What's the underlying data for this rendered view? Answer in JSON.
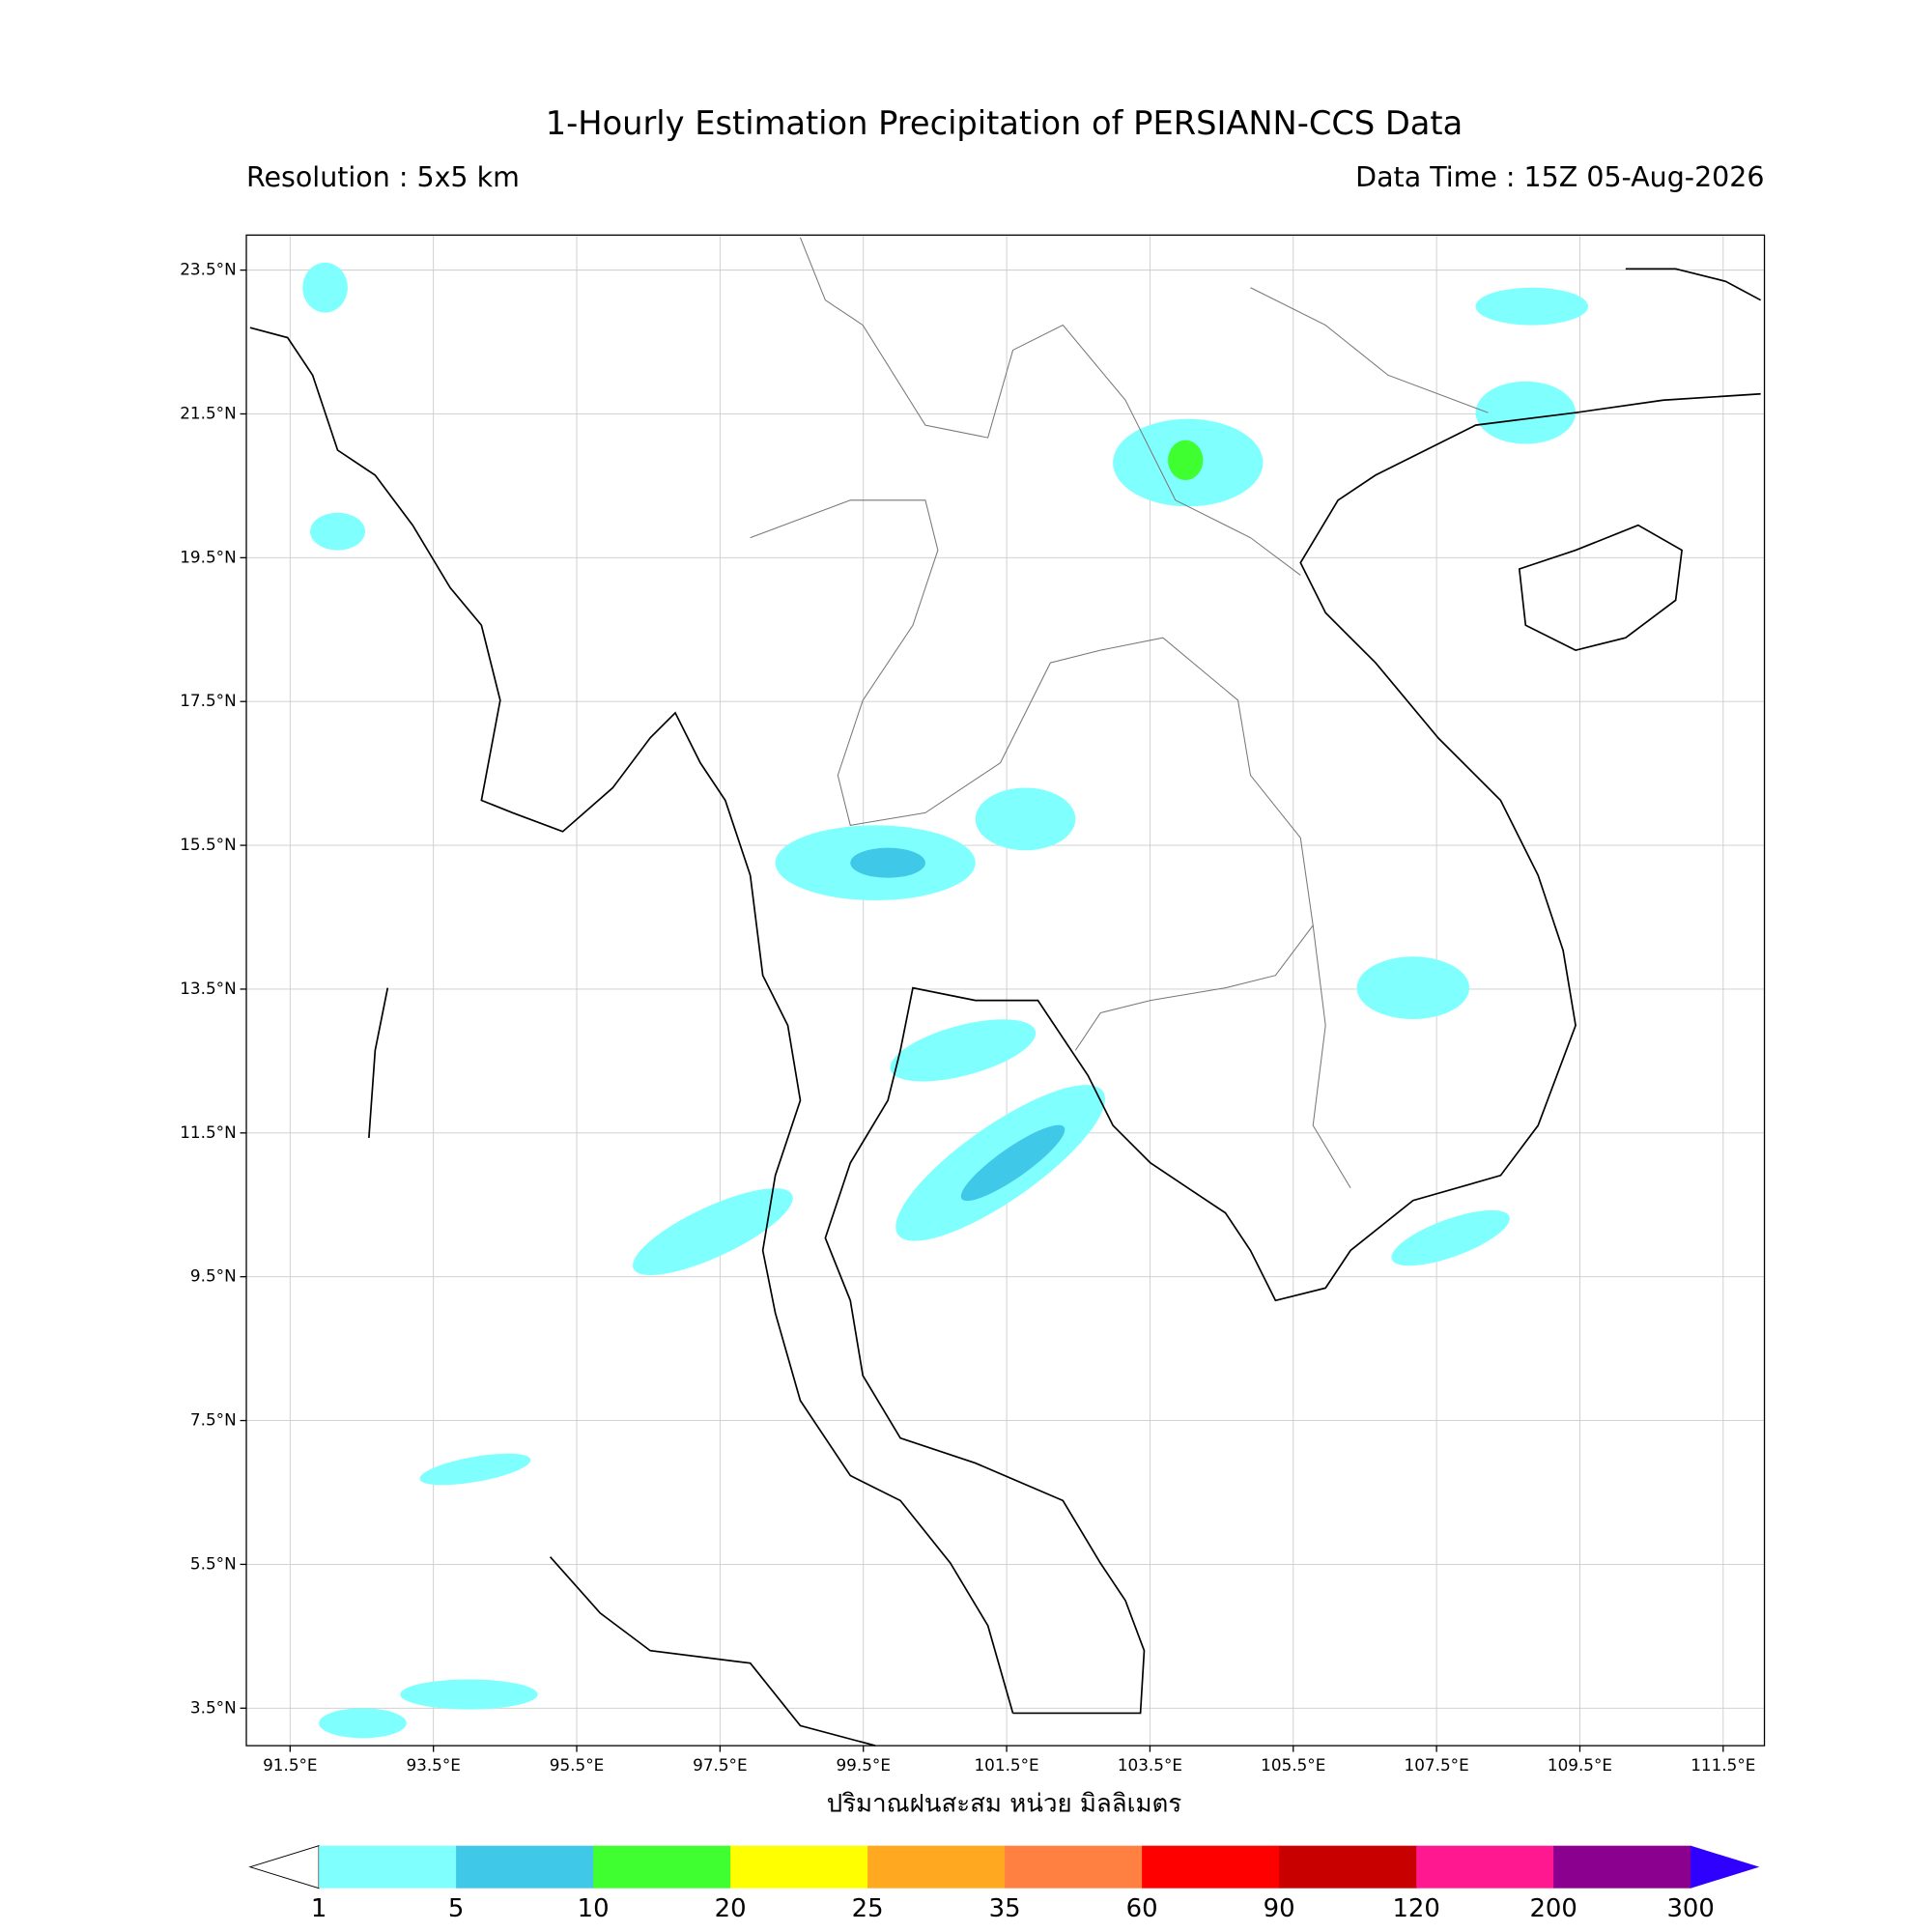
{
  "header": {
    "title": "1-Hourly Estimation Precipitation of PERSIANN-CCS Data",
    "resolution": "Resolution : 5x5 km",
    "data_time": "Data Time : 15Z 05-Aug-2026"
  },
  "map": {
    "lon_ticks": [
      {
        "value": 91.5,
        "label": "91.5°E"
      },
      {
        "value": 93.5,
        "label": "93.5°E"
      },
      {
        "value": 95.5,
        "label": "95.5°E"
      },
      {
        "value": 97.5,
        "label": "97.5°E"
      },
      {
        "value": 99.5,
        "label": "99.5°E"
      },
      {
        "value": 101.5,
        "label": "101.5°E"
      },
      {
        "value": 103.5,
        "label": "103.5°E"
      },
      {
        "value": 105.5,
        "label": "105.5°E"
      },
      {
        "value": 107.5,
        "label": "107.5°E"
      },
      {
        "value": 109.5,
        "label": "109.5°E"
      },
      {
        "value": 111.5,
        "label": "111.5°E"
      }
    ],
    "lat_ticks": [
      {
        "value": 23.5,
        "label": "23.5°N"
      },
      {
        "value": 21.5,
        "label": "21.5°N"
      },
      {
        "value": 19.5,
        "label": "19.5°N"
      },
      {
        "value": 17.5,
        "label": "17.5°N"
      },
      {
        "value": 15.5,
        "label": "15.5°N"
      },
      {
        "value": 13.5,
        "label": "13.5°N"
      },
      {
        "value": 11.5,
        "label": "11.5°N"
      },
      {
        "value": 9.5,
        "label": "9.5°N"
      },
      {
        "value": 7.5,
        "label": "7.5°N"
      },
      {
        "value": 5.5,
        "label": "5.5°N"
      },
      {
        "value": 3.5,
        "label": "3.5°N"
      }
    ],
    "xlabel": "ปริมาณฝนสะสม หน่วย มิลลิเมตร"
  },
  "colorbar": {
    "levels": [
      1,
      5,
      10,
      20,
      25,
      35,
      60,
      90,
      120,
      200,
      300
    ],
    "colors": [
      "#80ffff",
      "#40c8e8",
      "#40ff30",
      "#ffff00",
      "#ffa820",
      "#ff8040",
      "#ff0000",
      "#c80000",
      "#ff1890",
      "#8c0090"
    ],
    "extend_color": "#3000ff"
  }
}
